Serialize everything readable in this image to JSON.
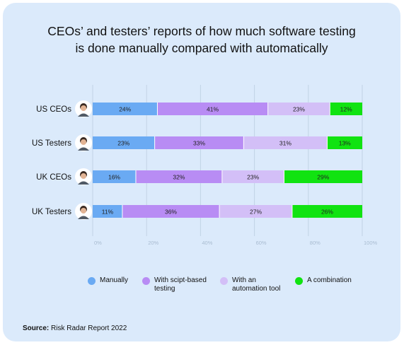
{
  "title_lines": [
    "CEOs’ and testers’ reports of how much software testing",
    "is done manually compared with automatically"
  ],
  "source": {
    "label": "Source:",
    "text": "Risk Radar Report 2022"
  },
  "chart_data": {
    "type": "bar",
    "orientation": "horizontal",
    "stacked": true,
    "categories": [
      "US CEOs",
      "US Testers",
      "UK CEOs",
      "UK Testers"
    ],
    "series": [
      {
        "name": "Manually",
        "values": [
          24,
          23,
          16,
          11
        ],
        "color": "#6aaaf3"
      },
      {
        "name": "With scipt-based\ntesting",
        "values": [
          41,
          33,
          32,
          36
        ],
        "color": "#b88cf4"
      },
      {
        "name": "With an\nautomation tool",
        "values": [
          23,
          31,
          23,
          27
        ],
        "color": "#d3bff7"
      },
      {
        "name": "A combination",
        "values": [
          12,
          13,
          29,
          26
        ],
        "color": "#11e311"
      }
    ],
    "value_suffix": "%",
    "xlim": [
      0,
      100
    ],
    "xticks": [
      "0%",
      "20%",
      "40%",
      "60%",
      "80%",
      "100%"
    ],
    "grid": true,
    "legend": "bottom",
    "avatar_icons": [
      "person-avatar-icon",
      "person-avatar-icon",
      "person-avatar-icon",
      "person-avatar-icon"
    ]
  }
}
